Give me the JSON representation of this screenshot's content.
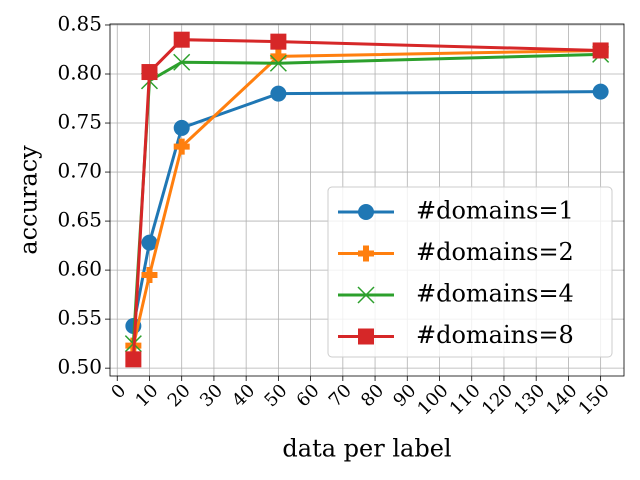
{
  "chart_data": {
    "type": "line",
    "x_label": "data per label",
    "y_label": "accuracy",
    "x": [
      5,
      10,
      20,
      50,
      150
    ],
    "series": [
      {
        "name": "#domains=1",
        "color": "#1f77b4",
        "marker": "circle",
        "values": [
          0.543,
          0.628,
          0.745,
          0.78,
          0.782
        ]
      },
      {
        "name": "#domains=2",
        "color": "#ff7f0e",
        "marker": "plus",
        "values": [
          0.523,
          0.595,
          0.726,
          0.818,
          0.824
        ]
      },
      {
        "name": "#domains=4",
        "color": "#2ca02c",
        "marker": "x",
        "values": [
          0.525,
          0.793,
          0.812,
          0.811,
          0.82
        ]
      },
      {
        "name": "#domains=8",
        "color": "#d62728",
        "marker": "square",
        "values": [
          0.509,
          0.802,
          0.835,
          0.833,
          0.824
        ]
      }
    ],
    "xlim": [
      -2.25,
      157.25
    ],
    "ylim": [
      0.492,
      0.851
    ],
    "xticks": [
      0,
      10,
      20,
      30,
      40,
      50,
      60,
      70,
      80,
      90,
      100,
      110,
      120,
      130,
      140,
      150
    ],
    "yticks": [
      {
        "value": 0.5,
        "label": "0.50"
      },
      {
        "value": 0.55,
        "label": "0.55"
      },
      {
        "value": 0.6,
        "label": "0.60"
      },
      {
        "value": 0.65,
        "label": "0.65"
      },
      {
        "value": 0.7,
        "label": "0.70"
      },
      {
        "value": 0.75,
        "label": "0.75"
      },
      {
        "value": 0.8,
        "label": "0.80"
      },
      {
        "value": 0.85,
        "label": "0.85"
      }
    ],
    "grid": true,
    "legend": "lower right"
  }
}
